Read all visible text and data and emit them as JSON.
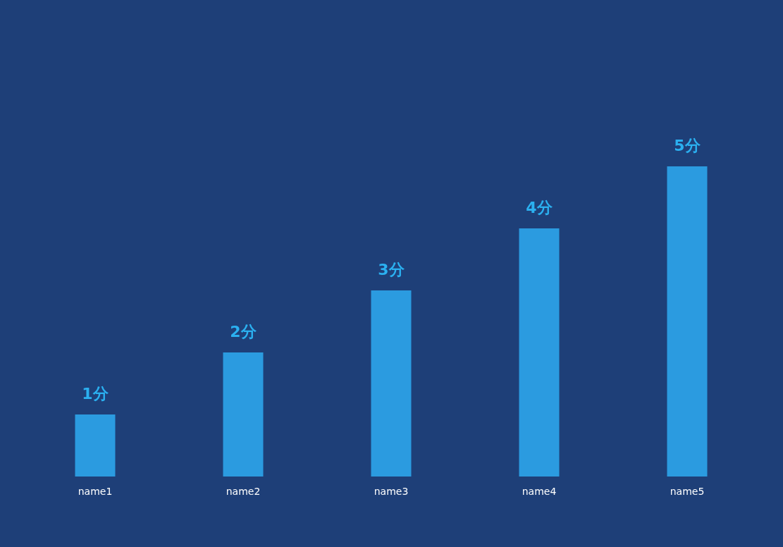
{
  "chart_data": {
    "type": "bar",
    "categories": [
      "name1",
      "name2",
      "name3",
      "name4",
      "name5"
    ],
    "values": [
      1,
      2,
      3,
      4,
      5
    ],
    "value_labels": [
      "1分",
      "2分",
      "3分",
      "4分",
      "5分"
    ],
    "color": "#2b9be0"
  }
}
